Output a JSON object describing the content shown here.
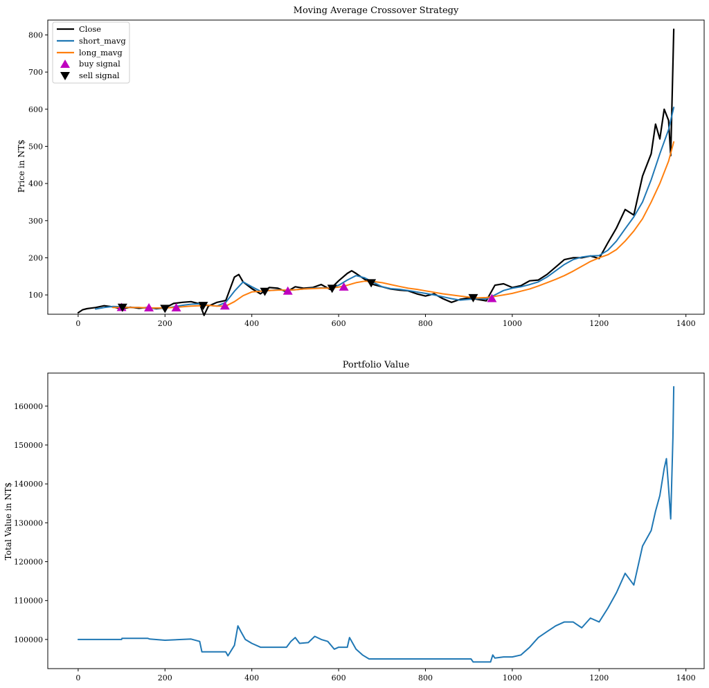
{
  "chart_data": [
    {
      "type": "line",
      "title": "Moving Average Crossover Strategy",
      "xlabel": "",
      "ylabel": "Price in NT$",
      "xlim": [
        -70,
        1442
      ],
      "ylim": [
        48,
        840
      ],
      "xticks": [
        0,
        200,
        400,
        600,
        800,
        1000,
        1200,
        1400
      ],
      "yticks": [
        100,
        200,
        300,
        400,
        500,
        600,
        700,
        800
      ],
      "grid": false,
      "legend_position": "top-left",
      "series": [
        {
          "name": "Close",
          "color": "#000000",
          "x": [
            0,
            10,
            20,
            40,
            60,
            80,
            100,
            120,
            140,
            160,
            180,
            200,
            220,
            240,
            260,
            280,
            290,
            300,
            320,
            340,
            360,
            370,
            380,
            400,
            420,
            440,
            460,
            480,
            500,
            520,
            540,
            560,
            580,
            600,
            620,
            630,
            640,
            660,
            680,
            700,
            720,
            740,
            760,
            780,
            800,
            820,
            840,
            860,
            880,
            900,
            920,
            940,
            960,
            980,
            1000,
            1020,
            1040,
            1060,
            1080,
            1100,
            1120,
            1140,
            1160,
            1180,
            1200,
            1220,
            1240,
            1260,
            1280,
            1300,
            1320,
            1330,
            1340,
            1350,
            1360,
            1365,
            1370,
            1372
          ],
          "y": [
            52,
            60,
            63,
            66,
            71,
            68,
            62,
            67,
            64,
            66,
            63,
            65,
            77,
            80,
            82,
            76,
            45,
            70,
            80,
            85,
            148,
            155,
            135,
            117,
            103,
            120,
            118,
            108,
            122,
            118,
            120,
            128,
            115,
            138,
            158,
            165,
            158,
            142,
            128,
            122,
            116,
            113,
            111,
            103,
            97,
            103,
            90,
            80,
            88,
            92,
            88,
            84,
            126,
            130,
            120,
            125,
            138,
            140,
            155,
            175,
            195,
            200,
            200,
            205,
            198,
            240,
            280,
            330,
            315,
            420,
            480,
            560,
            520,
            600,
            570,
            475,
            720,
            815
          ]
        },
        {
          "name": "short_mavg",
          "color": "#1f77b4",
          "x": [
            40,
            60,
            80,
            100,
            120,
            140,
            160,
            180,
            200,
            220,
            240,
            260,
            280,
            300,
            320,
            340,
            360,
            380,
            400,
            420,
            440,
            460,
            480,
            500,
            520,
            540,
            560,
            580,
            600,
            620,
            640,
            660,
            680,
            700,
            720,
            740,
            760,
            780,
            800,
            820,
            840,
            860,
            880,
            900,
            920,
            940,
            960,
            980,
            1000,
            1020,
            1040,
            1060,
            1080,
            1100,
            1120,
            1140,
            1160,
            1180,
            1200,
            1220,
            1240,
            1260,
            1280,
            1300,
            1320,
            1340,
            1360,
            1372
          ],
          "y": [
            62,
            66,
            69,
            68,
            66,
            66,
            64,
            64,
            64,
            68,
            72,
            75,
            76,
            72,
            70,
            80,
            110,
            135,
            122,
            110,
            112,
            114,
            112,
            114,
            116,
            118,
            119,
            118,
            126,
            140,
            152,
            146,
            134,
            122,
            117,
            115,
            112,
            108,
            104,
            100,
            95,
            90,
            86,
            88,
            90,
            89,
            100,
            112,
            118,
            122,
            128,
            135,
            148,
            165,
            182,
            195,
            202,
            205,
            206,
            220,
            245,
            278,
            310,
            350,
            410,
            480,
            545,
            605
          ]
        },
        {
          "name": "long_mavg",
          "color": "#ff7f0e",
          "x": [
            80,
            100,
            120,
            140,
            160,
            180,
            200,
            220,
            240,
            260,
            280,
            300,
            320,
            340,
            360,
            380,
            400,
            420,
            440,
            460,
            480,
            500,
            520,
            540,
            560,
            580,
            600,
            620,
            640,
            660,
            680,
            700,
            720,
            740,
            760,
            780,
            800,
            820,
            840,
            860,
            880,
            900,
            920,
            940,
            960,
            980,
            1000,
            1020,
            1040,
            1060,
            1080,
            1100,
            1120,
            1140,
            1160,
            1180,
            1200,
            1220,
            1240,
            1260,
            1280,
            1300,
            1320,
            1340,
            1360,
            1372
          ],
          "y": [
            66,
            66,
            66,
            66,
            65,
            65,
            65,
            66,
            68,
            70,
            71,
            72,
            70,
            70,
            82,
            98,
            108,
            110,
            112,
            113,
            113,
            114,
            116,
            117,
            118,
            118,
            121,
            126,
            133,
            137,
            136,
            133,
            128,
            123,
            118,
            115,
            111,
            107,
            103,
            100,
            97,
            94,
            92,
            93,
            96,
            100,
            104,
            110,
            116,
            124,
            133,
            142,
            152,
            164,
            177,
            190,
            200,
            208,
            222,
            245,
            272,
            305,
            350,
            400,
            460,
            512
          ]
        }
      ],
      "markers": [
        {
          "name": "buy signal",
          "color": "#bf00bf",
          "shape": "triangle-up",
          "x": [
            100,
            163,
            226,
            338,
            483,
            612,
            953
          ],
          "y": [
            66,
            65,
            65,
            70,
            110,
            121,
            90
          ]
        },
        {
          "name": "sell signal",
          "color": "#000000",
          "shape": "triangle-down",
          "x": [
            102,
            200,
            288,
            430,
            585,
            675,
            910
          ],
          "y": [
            67,
            64,
            72,
            110,
            118,
            133,
            93
          ]
        }
      ]
    },
    {
      "type": "line",
      "title": "Portfolio Value",
      "xlabel": "",
      "ylabel": "Total Value in NT$",
      "xlim": [
        -70,
        1442
      ],
      "ylim": [
        92500,
        168500
      ],
      "xticks": [
        0,
        200,
        400,
        600,
        800,
        1000,
        1200,
        1400
      ],
      "yticks": [
        100000,
        110000,
        120000,
        130000,
        140000,
        150000,
        160000
      ],
      "grid": false,
      "series": [
        {
          "name": "",
          "color": "#1f77b4",
          "x": [
            0,
            100,
            101,
            160,
            165,
            200,
            260,
            280,
            285,
            340,
            345,
            360,
            368,
            375,
            385,
            400,
            420,
            440,
            460,
            480,
            490,
            500,
            510,
            530,
            545,
            560,
            575,
            590,
            600,
            620,
            625,
            640,
            655,
            670,
            700,
            800,
            905,
            910,
            950,
            955,
            960,
            980,
            1000,
            1020,
            1040,
            1060,
            1080,
            1100,
            1120,
            1140,
            1160,
            1180,
            1200,
            1220,
            1240,
            1260,
            1280,
            1300,
            1320,
            1330,
            1340,
            1350,
            1355,
            1360,
            1365,
            1370,
            1372
          ],
          "y": [
            100000,
            100000,
            100300,
            100300,
            100100,
            99800,
            100100,
            99500,
            96800,
            96800,
            95800,
            98500,
            103500,
            102000,
            100000,
            99000,
            98000,
            98000,
            98000,
            98000,
            99500,
            100500,
            99000,
            99200,
            100800,
            100000,
            99500,
            97500,
            98000,
            98000,
            100500,
            97500,
            96000,
            95000,
            95000,
            95000,
            95000,
            94200,
            94200,
            96000,
            95200,
            95500,
            95500,
            96000,
            98000,
            100500,
            102000,
            103500,
            104500,
            104500,
            103000,
            105500,
            104500,
            108000,
            112000,
            117000,
            114000,
            124000,
            128000,
            133000,
            137000,
            144000,
            146500,
            139000,
            131000,
            152000,
            165000
          ]
        }
      ]
    }
  ]
}
